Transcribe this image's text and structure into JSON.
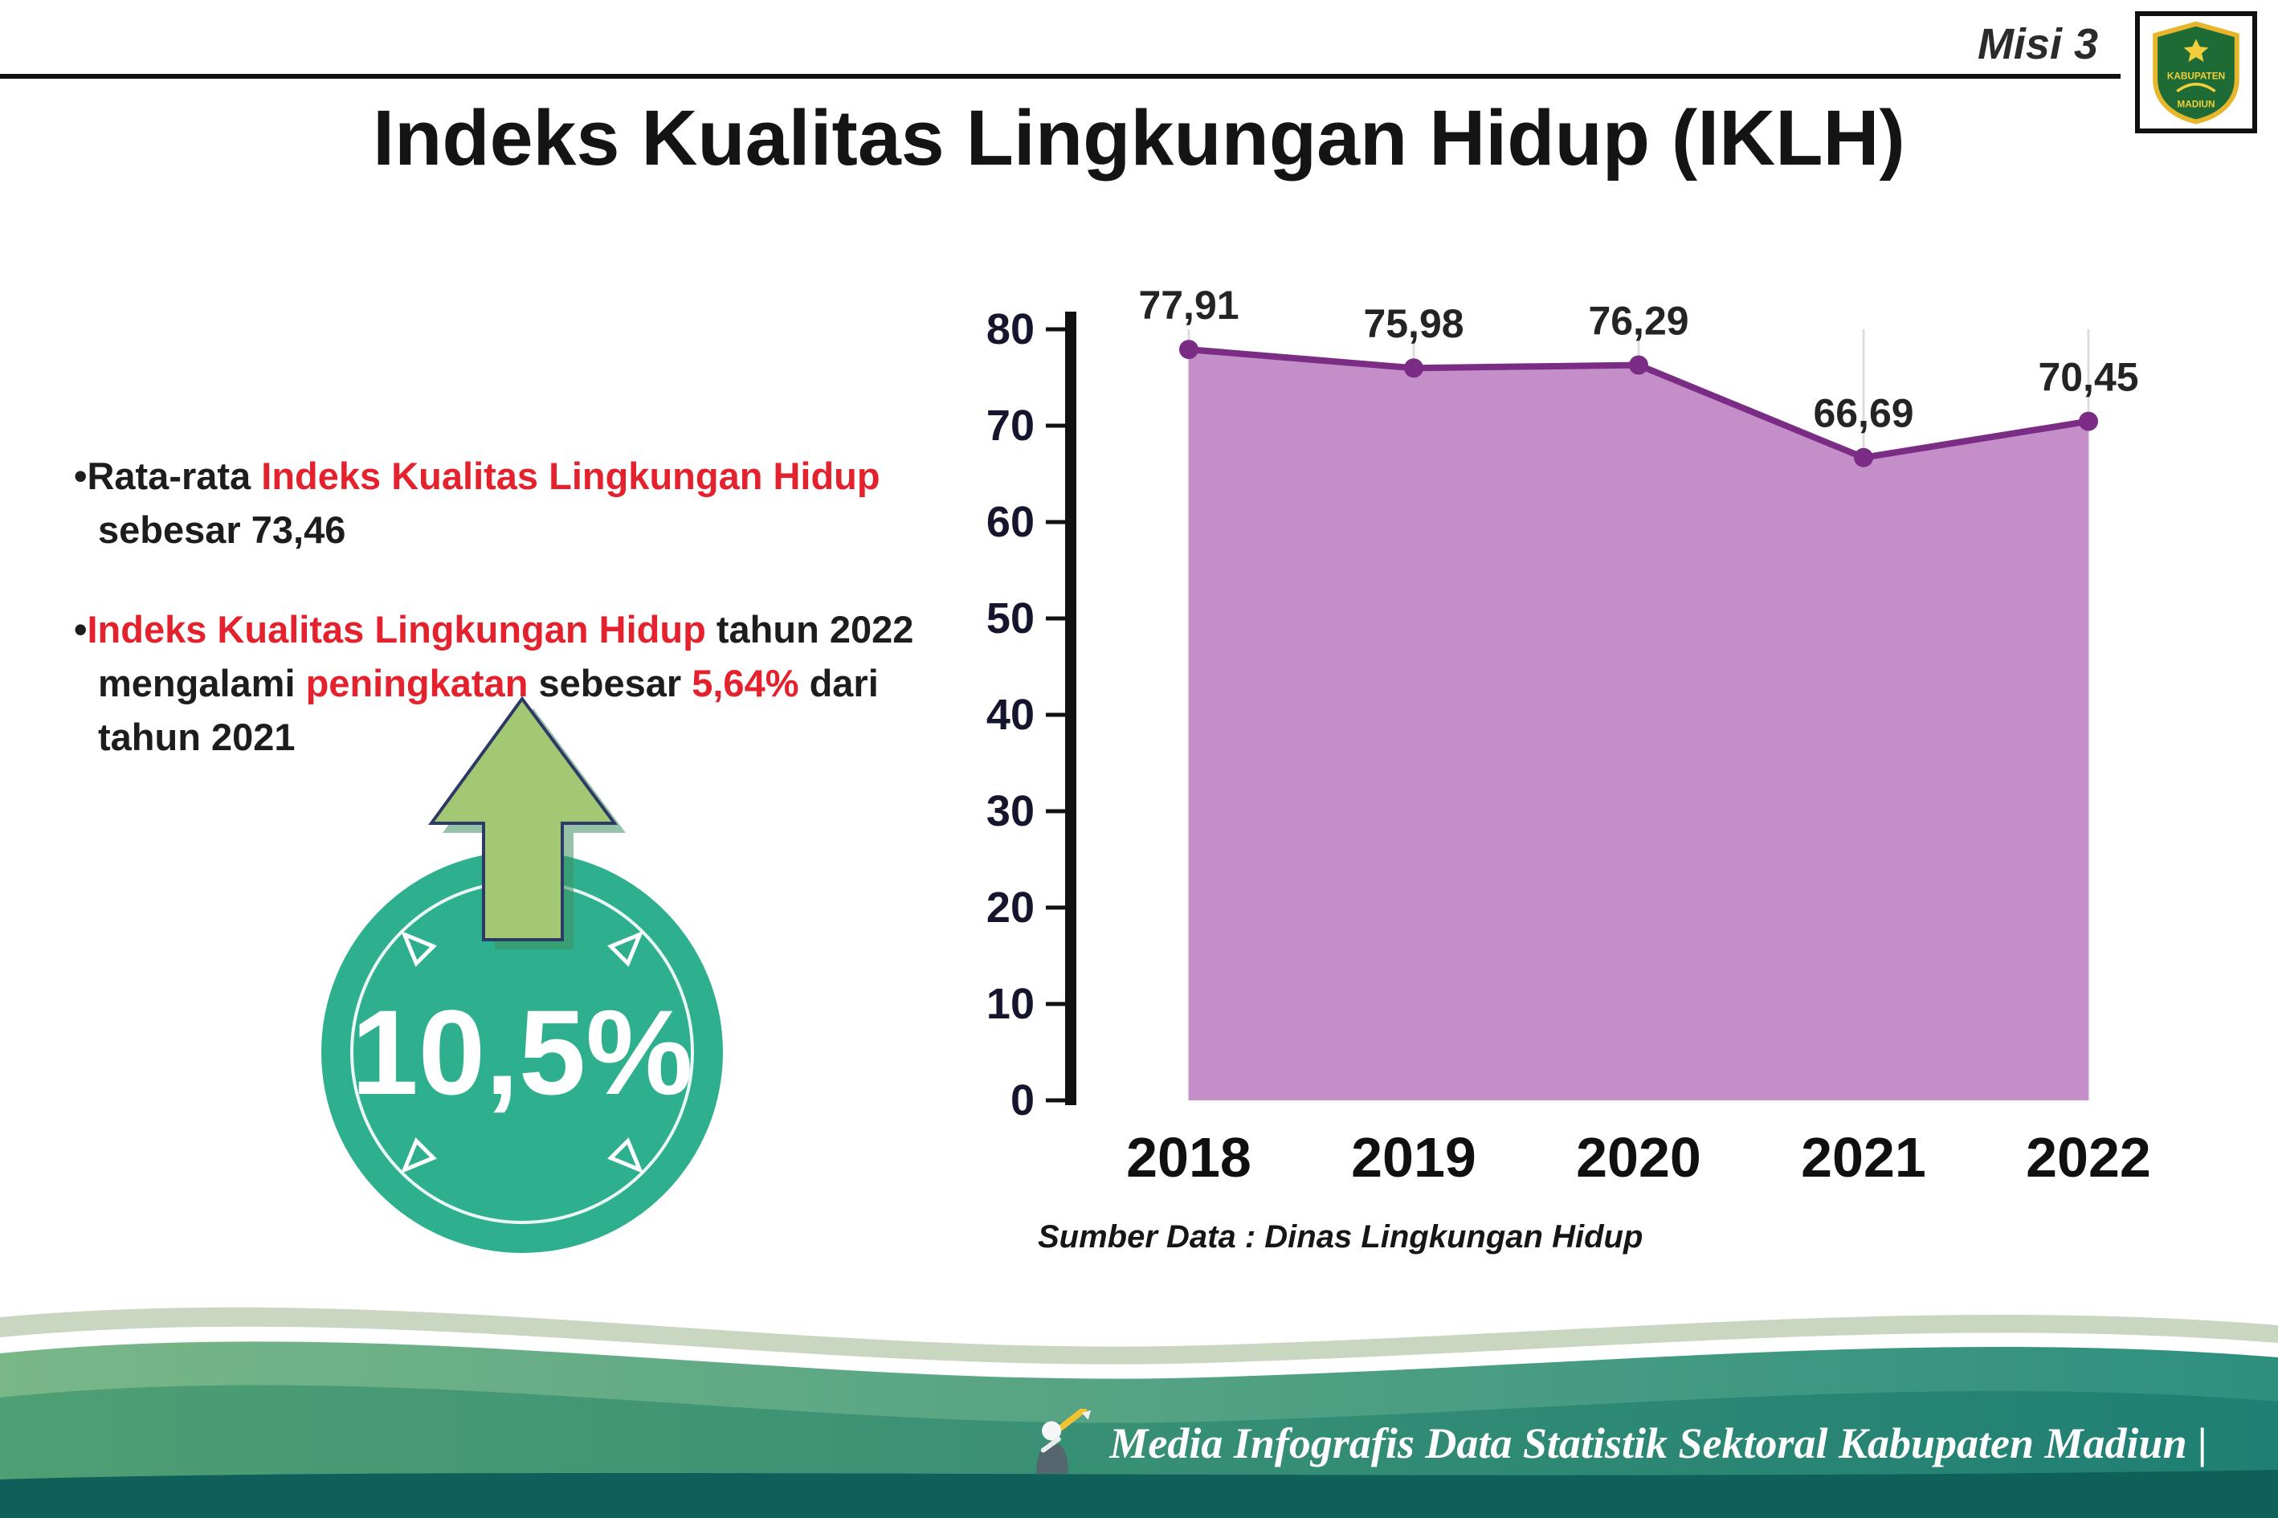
{
  "header": {
    "misi": "Misi 3",
    "title": "Indeks Kualitas Lingkungan Hidup (IKLH)",
    "logo": {
      "text_top": "KABUPATEN",
      "text_bottom": "MADIUN"
    }
  },
  "colors": {
    "accent_red": "#e4222d",
    "badge_circle": "#2eb08e",
    "badge_arrow": "#a3c873",
    "chart_area": "#c48fc8",
    "chart_line": "#7b2d86",
    "footer_dark_band": "#0f5f5a"
  },
  "bullets": {
    "bullet1": [
      {
        "text": "•Rata-rata ",
        "color": "default"
      },
      {
        "text": "Indeks Kualitas Lingkungan Hidup",
        "color": "red"
      },
      {
        "br": true
      },
      {
        "text": "sebesar 73,46",
        "color": "default"
      }
    ],
    "bullet2": [
      {
        "text": "•",
        "color": "default"
      },
      {
        "text": "Indeks Kualitas Lingkungan Hidup",
        "color": "red"
      },
      {
        "text": " tahun 2022",
        "color": "default"
      },
      {
        "br": true
      },
      {
        "text": "mengalami ",
        "color": "default"
      },
      {
        "text": "peningkatan",
        "color": "red"
      },
      {
        "text": " sebesar ",
        "color": "default"
      },
      {
        "text": "5,64%",
        "color": "red"
      },
      {
        "text": " dari",
        "color": "default"
      },
      {
        "br": true
      },
      {
        "text": "tahun 2021",
        "color": "default"
      }
    ]
  },
  "badge": {
    "value": "10,5%",
    "circle_color": "#2eb08e",
    "arrow_color": "#a3c873"
  },
  "chart_data": {
    "type": "area",
    "categories": [
      "2018",
      "2019",
      "2020",
      "2021",
      "2022"
    ],
    "values": [
      77.91,
      75.98,
      76.29,
      66.69,
      70.45
    ],
    "point_labels": [
      "77,91",
      "75,98",
      "76,29",
      "66,69",
      "70,45"
    ],
    "title": "",
    "xlabel": "",
    "ylabel": "",
    "ylim": [
      0,
      80
    ],
    "ytick_step": 10,
    "grid": "vertical",
    "legend": "none",
    "source": "Sumber Data : Dinas Lingkungan Hidup",
    "colors": {
      "area": "#c48fc8",
      "line": "#7b2d86",
      "point": "#7b2d86"
    }
  },
  "footer": {
    "credit": "Media Infografis Data Statistik Sektoral Kabupaten Madiun |"
  }
}
